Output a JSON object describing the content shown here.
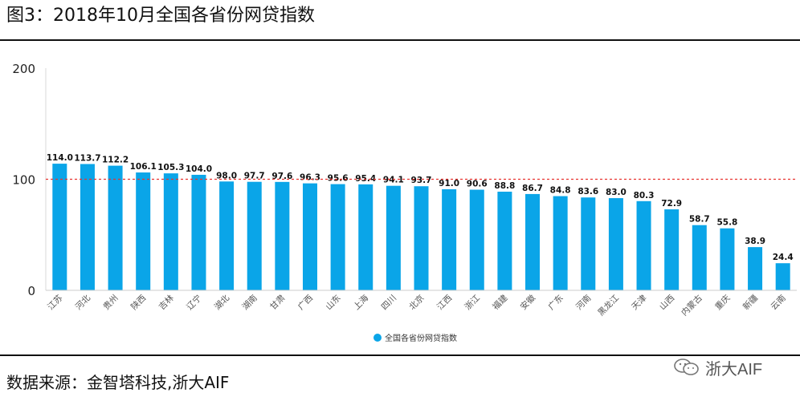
{
  "figure": {
    "title": "图3：2018年10月全国各省份网贷指数",
    "source": "数据来源：金智塔科技,浙大AIF",
    "watermark": "浙大AIF"
  },
  "chart_data": {
    "type": "bar",
    "categories": [
      "江苏",
      "河北",
      "贵州",
      "陕西",
      "吉林",
      "辽宁",
      "湖北",
      "湖南",
      "甘肃",
      "广西",
      "山东",
      "上海",
      "四川",
      "北京",
      "江西",
      "浙江",
      "福建",
      "安徽",
      "广东",
      "河南",
      "黑龙江",
      "天津",
      "山西",
      "内蒙古",
      "重庆",
      "新疆",
      "云南"
    ],
    "series": [
      {
        "name": "全国各省份网贷指数",
        "values": [
          114.0,
          113.7,
          112.2,
          106.1,
          105.3,
          104.0,
          98.0,
          97.7,
          97.6,
          96.3,
          95.6,
          95.4,
          94.1,
          93.7,
          91.0,
          90.6,
          88.8,
          86.7,
          84.8,
          83.6,
          83.0,
          80.3,
          72.9,
          58.7,
          55.8,
          38.9,
          24.4
        ]
      }
    ],
    "value_labels": [
      "114.0",
      "113.7",
      "112.2",
      "106.1",
      "105.3",
      "104.0",
      "98.0",
      "97.7",
      "97.6",
      "96.3",
      "95.6",
      "95.4",
      "94.1",
      "93.7",
      "91.0",
      "90.6",
      "88.8",
      "86.7",
      "84.8",
      "83.6",
      "83.0",
      "80.3",
      "72.9",
      "58.7",
      "55.8",
      "38.9",
      "24.4"
    ],
    "ylim": [
      0,
      200
    ],
    "yticks": [
      "0",
      "100",
      "200"
    ],
    "reference_line": {
      "value": 100,
      "style": "dashed",
      "color": "#e8332f"
    },
    "bar_color": "#0aa5e8",
    "grid": false,
    "legend_position": "bottom-center"
  }
}
